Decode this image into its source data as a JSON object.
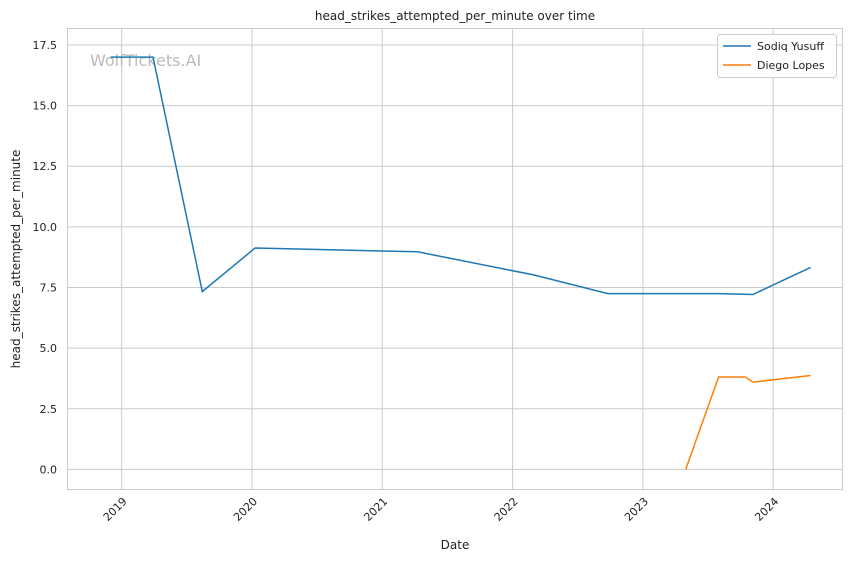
{
  "chart_data": {
    "type": "line",
    "title": "head_strikes_attempted_per_minute over time",
    "xlabel": "Date",
    "ylabel": "head_strikes_attempted_per_minute",
    "watermark": "WolfTickets.AI",
    "x_ticks": [
      "2019",
      "2020",
      "2021",
      "2022",
      "2023",
      "2024"
    ],
    "y_ticks": [
      "0.0",
      "2.5",
      "5.0",
      "7.5",
      "10.0",
      "12.5",
      "15.0",
      "17.5"
    ],
    "ylim": [
      -0.85,
      18.2
    ],
    "xlim": [
      "2018-08-01",
      "2024-07-15"
    ],
    "grid": true,
    "legend_position": "top-right",
    "series": [
      {
        "name": "Sodiq Yusuff",
        "color": "#1f77b4",
        "x": [
          "2018-12-01",
          "2019-03-30",
          "2019-08-15",
          "2020-01-10",
          "2021-04-10",
          "2022-03-01",
          "2022-09-25",
          "2023-08-01",
          "2023-11-05",
          "2024-04-15"
        ],
        "y": [
          17.0,
          17.0,
          7.33,
          9.13,
          8.97,
          8.02,
          7.25,
          7.25,
          7.21,
          8.33
        ]
      },
      {
        "name": "Diego Lopes",
        "color": "#ff7f0e",
        "x": [
          "2023-05-01",
          "2023-08-01",
          "2023-10-15",
          "2023-11-05",
          "2024-04-15"
        ],
        "y": [
          0.0,
          3.81,
          3.81,
          3.6,
          3.87
        ]
      }
    ]
  }
}
